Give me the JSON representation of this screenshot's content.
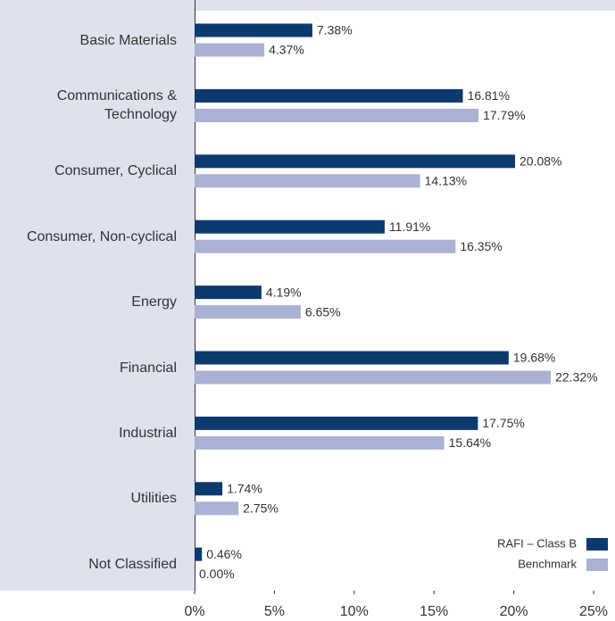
{
  "chart_data": {
    "type": "hbar",
    "categories": [
      "Basic Materials",
      "Communications & Technology",
      "Consumer, Cyclical",
      "Consumer, Non-cyclical",
      "Energy",
      "Financial",
      "Industrial",
      "Utilities",
      "Not Classified"
    ],
    "series": [
      {
        "name": "RAFI – Class B",
        "color": "#0c3a6f",
        "values": [
          7.38,
          16.81,
          20.08,
          11.91,
          4.19,
          19.68,
          17.75,
          1.74,
          0.46
        ],
        "value_labels": [
          "7.38%",
          "16.81%",
          "20.08%",
          "11.91%",
          "4.19%",
          "19.68%",
          "17.75%",
          "1.74%",
          "0.46%"
        ]
      },
      {
        "name": "Benchmark",
        "color": "#a9b2d4",
        "values": [
          4.37,
          17.79,
          14.13,
          16.35,
          6.65,
          22.32,
          15.64,
          2.75,
          0.0
        ],
        "value_labels": [
          "4.37%",
          "17.79%",
          "14.13%",
          "16.35%",
          "6.65%",
          "22.32%",
          "15.64%",
          "2.75%",
          "0.00%"
        ]
      }
    ],
    "xlim": [
      0,
      25
    ],
    "xticks": [
      {
        "value": 0,
        "label": "0%"
      },
      {
        "value": 5,
        "label": "5%"
      },
      {
        "value": 10,
        "label": "10%"
      },
      {
        "value": 15,
        "label": "15%"
      },
      {
        "value": 20,
        "label": "20%"
      },
      {
        "value": 25,
        "label": "25%"
      }
    ],
    "legend": "lower right"
  }
}
